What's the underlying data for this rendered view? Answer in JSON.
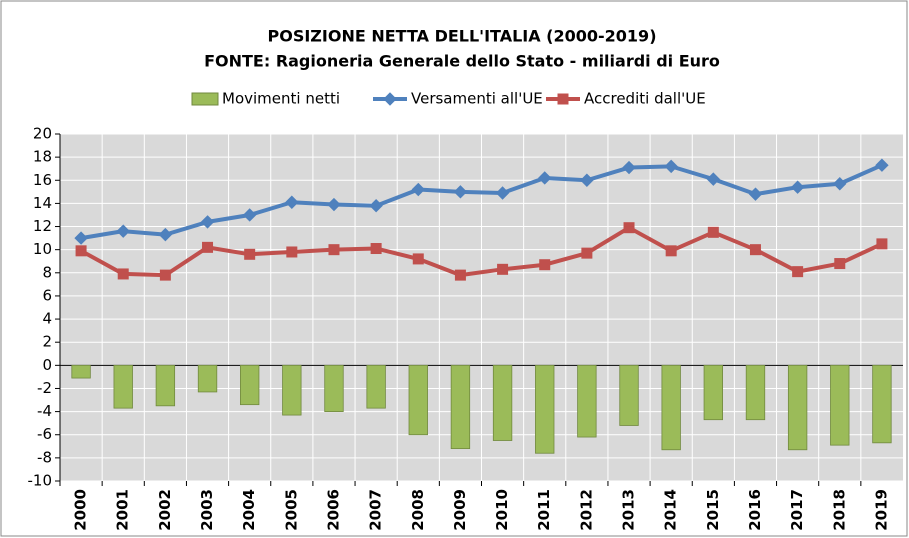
{
  "chart_data": {
    "type": "bar+line",
    "title": "POSIZIONE  NETTA DELL'ITALIA (2000-2019)",
    "subtitle": "FONTE: Ragioneria Generale dello Stato - miliardi di Euro",
    "categories": [
      "2000",
      "2001",
      "2002",
      "2003",
      "2004",
      "2005",
      "2006",
      "2007",
      "2008",
      "2009",
      "2010",
      "2011",
      "2012",
      "2013",
      "2014",
      "2015",
      "2016",
      "2017",
      "2018",
      "2019"
    ],
    "series": [
      {
        "name": "Movimenti netti",
        "type": "bar",
        "color": "#9bbb59",
        "values": [
          -1.1,
          -3.7,
          -3.5,
          -2.3,
          -3.4,
          -4.3,
          -4.0,
          -3.7,
          -6.0,
          -7.2,
          -6.5,
          -7.6,
          -6.2,
          -5.2,
          -7.3,
          -4.7,
          -4.7,
          -7.3,
          -6.9,
          -6.7
        ]
      },
      {
        "name": "Versamenti all'UE",
        "type": "line",
        "marker": "diamond",
        "color": "#4f81bd",
        "values": [
          11.0,
          11.6,
          11.3,
          12.4,
          13.0,
          14.1,
          13.9,
          13.8,
          15.2,
          15.0,
          14.9,
          16.2,
          16.0,
          17.1,
          17.2,
          16.1,
          14.8,
          15.4,
          15.7,
          17.3
        ]
      },
      {
        "name": "Accrediti dall'UE",
        "type": "line",
        "marker": "square",
        "color": "#c0504d",
        "values": [
          9.9,
          7.9,
          7.8,
          10.2,
          9.6,
          9.8,
          10.0,
          10.1,
          9.2,
          7.8,
          8.3,
          8.7,
          9.7,
          11.9,
          9.9,
          11.5,
          10.0,
          8.1,
          8.8,
          10.5
        ]
      }
    ],
    "ylim": [
      -10,
      20
    ],
    "yticks": [
      -10,
      -8,
      -6,
      -4,
      -2,
      0,
      2,
      4,
      6,
      8,
      10,
      12,
      14,
      16,
      18,
      20
    ],
    "grid": true,
    "legend": "top"
  }
}
